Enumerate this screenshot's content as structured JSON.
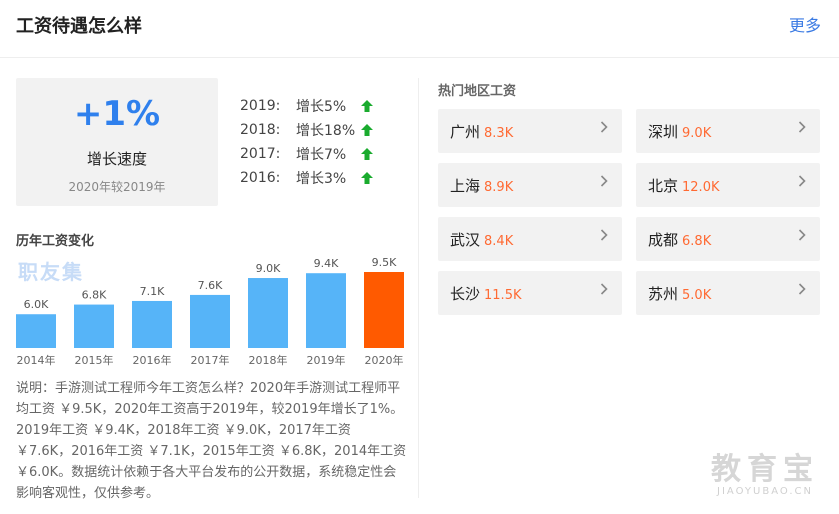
{
  "header": {
    "title": "工资待遇怎么样",
    "more": "更多"
  },
  "growth": {
    "percent": "+1%",
    "label": "增长速度",
    "sub": "2020年较2019年"
  },
  "year_growth": [
    {
      "year": "2019:",
      "increase": "增长5%"
    },
    {
      "year": "2018:",
      "increase": "增长18%"
    },
    {
      "year": "2017:",
      "increase": "增长7%"
    },
    {
      "year": "2016:",
      "increase": "增长3%"
    }
  ],
  "chart_title": "历年工资变化",
  "chart_watermark": "职友集",
  "chart_data": {
    "type": "bar",
    "title": "历年工资变化",
    "categories": [
      "2014年",
      "2015年",
      "2016年",
      "2017年",
      "2018年",
      "2019年",
      "2020年"
    ],
    "values": [
      6.0,
      6.8,
      7.1,
      7.6,
      9.0,
      9.4,
      9.5
    ],
    "data_labels": [
      "6.0K",
      "6.8K",
      "7.1K",
      "7.6K",
      "9.0K",
      "9.4K",
      "9.5K"
    ],
    "unit": "K",
    "colors": {
      "normal": "#56b4f8",
      "highlight": "#ff5a00"
    },
    "highlight_index": 6,
    "grid": false,
    "legend": "none"
  },
  "description": "说明：手游测试工程师今年工资怎么样？2020年手游测试工程师平均工资 ￥9.5K，2020年工资高于2019年，较2019年增长了1%。2019年工资 ￥9.4K，2018年工资 ￥9.0K，2017年工资 ￥7.6K，2016年工资 ￥7.1K，2015年工资 ￥6.8K，2014年工资 ￥6.0K。数据统计依赖于各大平台发布的公开数据，系统稳定性会影响客观性，仅供参考。",
  "regions": {
    "title": "热门地区工资",
    "items": [
      {
        "city": "广州",
        "salary": "8.3K"
      },
      {
        "city": "深圳",
        "salary": "9.0K"
      },
      {
        "city": "上海",
        "salary": "8.9K"
      },
      {
        "city": "北京",
        "salary": "12.0K"
      },
      {
        "city": "武汉",
        "salary": "8.4K"
      },
      {
        "city": "成都",
        "salary": "6.8K"
      },
      {
        "city": "长沙",
        "salary": "11.5K"
      },
      {
        "city": "苏州",
        "salary": "5.0K"
      }
    ]
  },
  "brand_watermark": {
    "cn": "教育宝",
    "en": "JIAOYUBAO.CN"
  },
  "icons": {
    "up": "up-arrow-icon",
    "chevron": "chevron-right-icon"
  },
  "colors": {
    "accent": "#2f80ed",
    "link": "#3a7ae3",
    "up_arrow": "#1aab2e",
    "salary": "#ff6a33"
  }
}
